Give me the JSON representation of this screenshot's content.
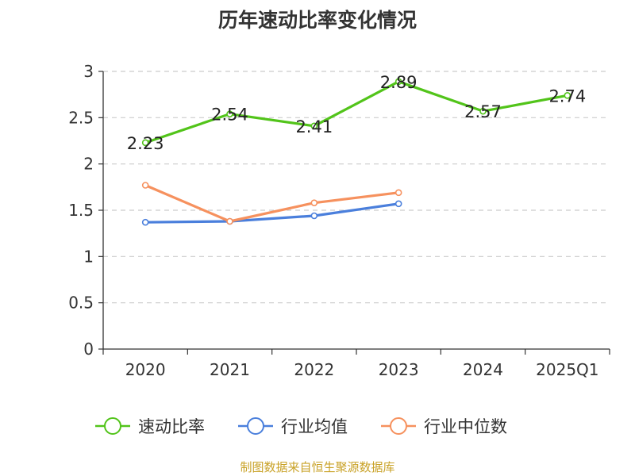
{
  "chart_data": {
    "type": "line",
    "title": "历年速动比率变化情况",
    "categories": [
      "2020",
      "2021",
      "2022",
      "2023",
      "2024",
      "2025Q1"
    ],
    "ylim": [
      0,
      3
    ],
    "yticks": [
      "0",
      "0.5",
      "1",
      "1.5",
      "2",
      "2.5",
      "3"
    ],
    "grid": true,
    "legend_position": "bottom",
    "series": [
      {
        "name": "速动比率",
        "color": "#52c41a",
        "values": [
          2.23,
          2.54,
          2.41,
          2.89,
          2.57,
          2.74
        ],
        "labels": [
          "2.23",
          "2.54",
          "2.41",
          "2.89",
          "2.57",
          "2.74"
        ],
        "show_labels": true
      },
      {
        "name": "行业均值",
        "color": "#4a7fdc",
        "values": [
          1.37,
          1.38,
          1.44,
          1.57,
          null,
          null
        ],
        "show_labels": false
      },
      {
        "name": "行业中位数",
        "color": "#f6915e",
        "values": [
          1.77,
          1.38,
          1.58,
          1.69,
          null,
          null
        ],
        "show_labels": false
      }
    ]
  },
  "source": "制图数据来自恒生聚源数据库"
}
